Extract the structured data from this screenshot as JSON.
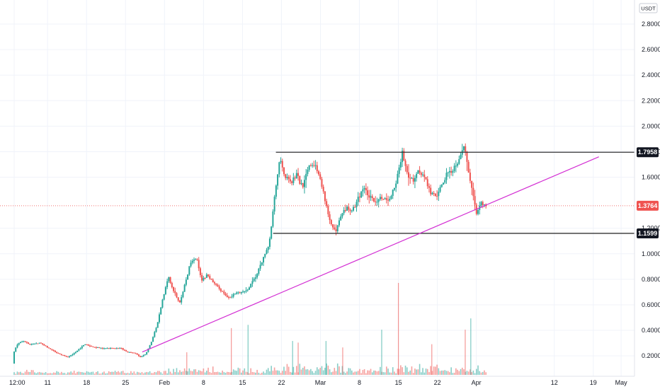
{
  "currency_badge": "USDT",
  "colors": {
    "up": "#26a69a",
    "down": "#ef5350",
    "trendline": "#d32fd3",
    "level_line": "#333333",
    "grid": "#f0f3fa",
    "current_price": "#ef5350",
    "tag_dark": "#131722"
  },
  "chart_data": {
    "type": "candlestick",
    "x_ticks": [
      "12:00",
      "11",
      "18",
      "25",
      "Feb",
      "8",
      "15",
      "22",
      "Mar",
      "8",
      "15",
      "22",
      "Apr",
      "12",
      "19",
      "May"
    ],
    "y_ticks": [
      "0.2000",
      "0.4000",
      "0.6000",
      "0.8000",
      "1.0000",
      "1.2000",
      "1.6000",
      "1.8000",
      "2.0000",
      "2.2000",
      "2.4000",
      "2.6000",
      "2.8000"
    ],
    "ylim": [
      0.04,
      2.95
    ],
    "x_range_days": [
      0,
      110
    ],
    "price_tags": [
      {
        "label": "1.7958",
        "value": 1.7958,
        "kind": "level"
      },
      {
        "label": "1.3764",
        "value": 1.3764,
        "kind": "current"
      },
      {
        "label": "1.1599",
        "value": 1.1599,
        "kind": "level"
      }
    ],
    "resistance": {
      "value": 1.7958,
      "x_start": 47,
      "x_end": 110
    },
    "support": {
      "value": 1.1599,
      "x_start": 46.5,
      "x_end": 110
    },
    "trendline": {
      "x1": 23,
      "y1": 0.23,
      "x2": 105,
      "y2": 1.76
    },
    "price_path": [
      [
        0,
        0.14
      ],
      [
        0.3,
        0.24
      ],
      [
        1,
        0.3
      ],
      [
        2,
        0.32
      ],
      [
        3,
        0.29
      ],
      [
        5,
        0.3
      ],
      [
        6.5,
        0.26
      ],
      [
        8,
        0.22
      ],
      [
        10,
        0.19
      ],
      [
        11,
        0.22
      ],
      [
        13,
        0.29
      ],
      [
        14.5,
        0.27
      ],
      [
        16,
        0.26
      ],
      [
        18,
        0.26
      ],
      [
        19.5,
        0.26
      ],
      [
        20.5,
        0.23
      ],
      [
        22,
        0.22
      ],
      [
        23,
        0.19
      ],
      [
        24,
        0.22
      ],
      [
        25,
        0.32
      ],
      [
        26,
        0.45
      ],
      [
        27,
        0.65
      ],
      [
        28,
        0.82
      ],
      [
        29,
        0.7
      ],
      [
        30,
        0.62
      ],
      [
        31,
        0.77
      ],
      [
        32,
        0.94
      ],
      [
        33,
        0.97
      ],
      [
        34,
        0.79
      ],
      [
        35,
        0.84
      ],
      [
        36,
        0.77
      ],
      [
        38,
        0.69
      ],
      [
        39,
        0.65
      ],
      [
        40,
        0.69
      ],
      [
        42,
        0.71
      ],
      [
        44,
        0.85
      ],
      [
        45,
        0.97
      ],
      [
        46,
        1.05
      ],
      [
        47,
        1.42
      ],
      [
        48,
        1.75
      ],
      [
        49,
        1.6
      ],
      [
        50,
        1.55
      ],
      [
        51,
        1.62
      ],
      [
        52,
        1.52
      ],
      [
        53,
        1.68
      ],
      [
        54,
        1.72
      ],
      [
        55,
        1.62
      ],
      [
        56,
        1.45
      ],
      [
        57,
        1.25
      ],
      [
        58,
        1.16
      ],
      [
        59,
        1.3
      ],
      [
        60,
        1.36
      ],
      [
        61,
        1.33
      ],
      [
        62,
        1.43
      ],
      [
        63,
        1.52
      ],
      [
        64,
        1.45
      ],
      [
        65,
        1.4
      ],
      [
        66,
        1.45
      ],
      [
        67,
        1.42
      ],
      [
        68,
        1.45
      ],
      [
        69,
        1.58
      ],
      [
        70,
        1.79
      ],
      [
        71,
        1.62
      ],
      [
        72,
        1.58
      ],
      [
        73,
        1.65
      ],
      [
        74,
        1.6
      ],
      [
        75,
        1.48
      ],
      [
        76,
        1.45
      ],
      [
        77,
        1.53
      ],
      [
        78,
        1.63
      ],
      [
        79,
        1.66
      ],
      [
        80,
        1.73
      ],
      [
        81,
        1.86
      ],
      [
        82,
        1.62
      ],
      [
        82.7,
        1.48
      ],
      [
        83.3,
        1.3
      ],
      [
        84,
        1.4
      ],
      [
        85,
        1.38
      ]
    ],
    "volume_spikes": [
      {
        "x": 31,
        "v": 0.14
      },
      {
        "x": 39,
        "v": 0.29
      },
      {
        "x": 42,
        "v": 0.31
      },
      {
        "x": 50,
        "v": 0.21
      },
      {
        "x": 51,
        "v": 0.2
      },
      {
        "x": 56,
        "v": 0.21
      },
      {
        "x": 59,
        "v": 0.17
      },
      {
        "x": 66,
        "v": 0.28
      },
      {
        "x": 69,
        "v": 0.57
      },
      {
        "x": 75,
        "v": 0.19
      },
      {
        "x": 81,
        "v": 0.28
      },
      {
        "x": 82,
        "v": 0.35
      }
    ],
    "candle_count": 300,
    "volume_max": 0.57
  }
}
